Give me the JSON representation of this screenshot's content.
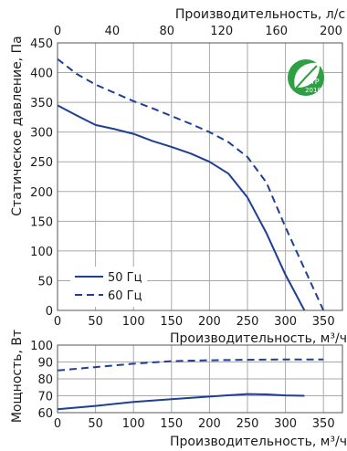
{
  "colors": {
    "series": "#1f3f95",
    "badge": "#2ea043",
    "grid": "#a9a9a9"
  },
  "badge": {
    "icon": "erp-leaf-icon",
    "text": "ErP",
    "year": "2018"
  },
  "chart_data": [
    {
      "type": "line",
      "title": "",
      "xlabel": "Производительность, м³/ч",
      "ylabel": "Статическое давление, Па",
      "x2label": "Производительность, л/с",
      "xlim": [
        0,
        375
      ],
      "ylim": [
        0,
        450
      ],
      "x2lim": [
        0,
        208.33
      ],
      "xticks": [
        0,
        50,
        100,
        150,
        200,
        250,
        300,
        350
      ],
      "yticks": [
        0,
        50,
        100,
        150,
        200,
        250,
        300,
        350,
        400,
        450
      ],
      "x2ticks": [
        0,
        40,
        80,
        120,
        160,
        200
      ],
      "grid": true,
      "legend": "bottom-left",
      "series": [
        {
          "name": "50 Гц",
          "style": "solid",
          "x": [
            0,
            25,
            50,
            75,
            100,
            125,
            150,
            175,
            200,
            225,
            250,
            275,
            300,
            325
          ],
          "y": [
            345,
            328,
            312,
            305,
            297,
            285,
            275,
            264,
            250,
            230,
            190,
            130,
            60,
            0
          ]
        },
        {
          "name": "60 Гц",
          "style": "dashed",
          "x": [
            0,
            25,
            50,
            75,
            100,
            125,
            150,
            175,
            200,
            225,
            250,
            275,
            300,
            325,
            350
          ],
          "y": [
            423,
            398,
            380,
            366,
            352,
            340,
            327,
            314,
            300,
            283,
            258,
            215,
            140,
            70,
            0
          ]
        }
      ]
    },
    {
      "type": "line",
      "title": "",
      "xlabel": "Производительность, м³/ч",
      "ylabel": "Мощность, Вт",
      "xlim": [
        0,
        375
      ],
      "ylim": [
        60,
        100
      ],
      "xticks": [
        0,
        50,
        100,
        150,
        200,
        250,
        300,
        350
      ],
      "yticks": [
        60,
        70,
        80,
        90,
        100
      ],
      "grid": true,
      "series": [
        {
          "style": "solid",
          "x": [
            0,
            50,
            100,
            150,
            200,
            250,
            275,
            300,
            325
          ],
          "y": [
            62,
            64,
            66.3,
            68,
            69.5,
            71,
            70.8,
            70.2,
            70
          ]
        },
        {
          "style": "dashed",
          "x": [
            0,
            50,
            100,
            150,
            200,
            250,
            300,
            350
          ],
          "y": [
            85,
            87,
            89,
            90.5,
            91,
            91.3,
            91.5,
            91.5
          ]
        }
      ]
    }
  ]
}
